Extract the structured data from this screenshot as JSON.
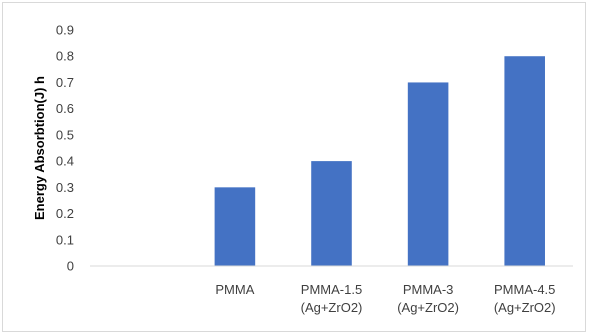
{
  "chart_data": {
    "type": "bar",
    "title": "",
    "xlabel": "",
    "ylabel": "Energy Absorbtion(J) h",
    "categories": [
      [
        "",
        ""
      ],
      [
        "PMMA",
        ""
      ],
      [
        "PMMA-1.5",
        "(Ag+ZrO2)"
      ],
      [
        "PMMA-3",
        "(Ag+ZrO2)"
      ],
      [
        "PMMA-4.5",
        "(Ag+ZrO2)"
      ]
    ],
    "values": [
      null,
      0.3,
      0.4,
      0.7,
      0.8
    ],
    "ylim": [
      0,
      0.9
    ],
    "yticks": [
      "0",
      "0.1",
      "0.2",
      "0.3",
      "0.4",
      "0.5",
      "0.6",
      "0.7",
      "0.8",
      "0.9"
    ],
    "grid": false,
    "legend": "none",
    "bar_color": "#4472c4",
    "axis_color": "#d9d9d9"
  }
}
